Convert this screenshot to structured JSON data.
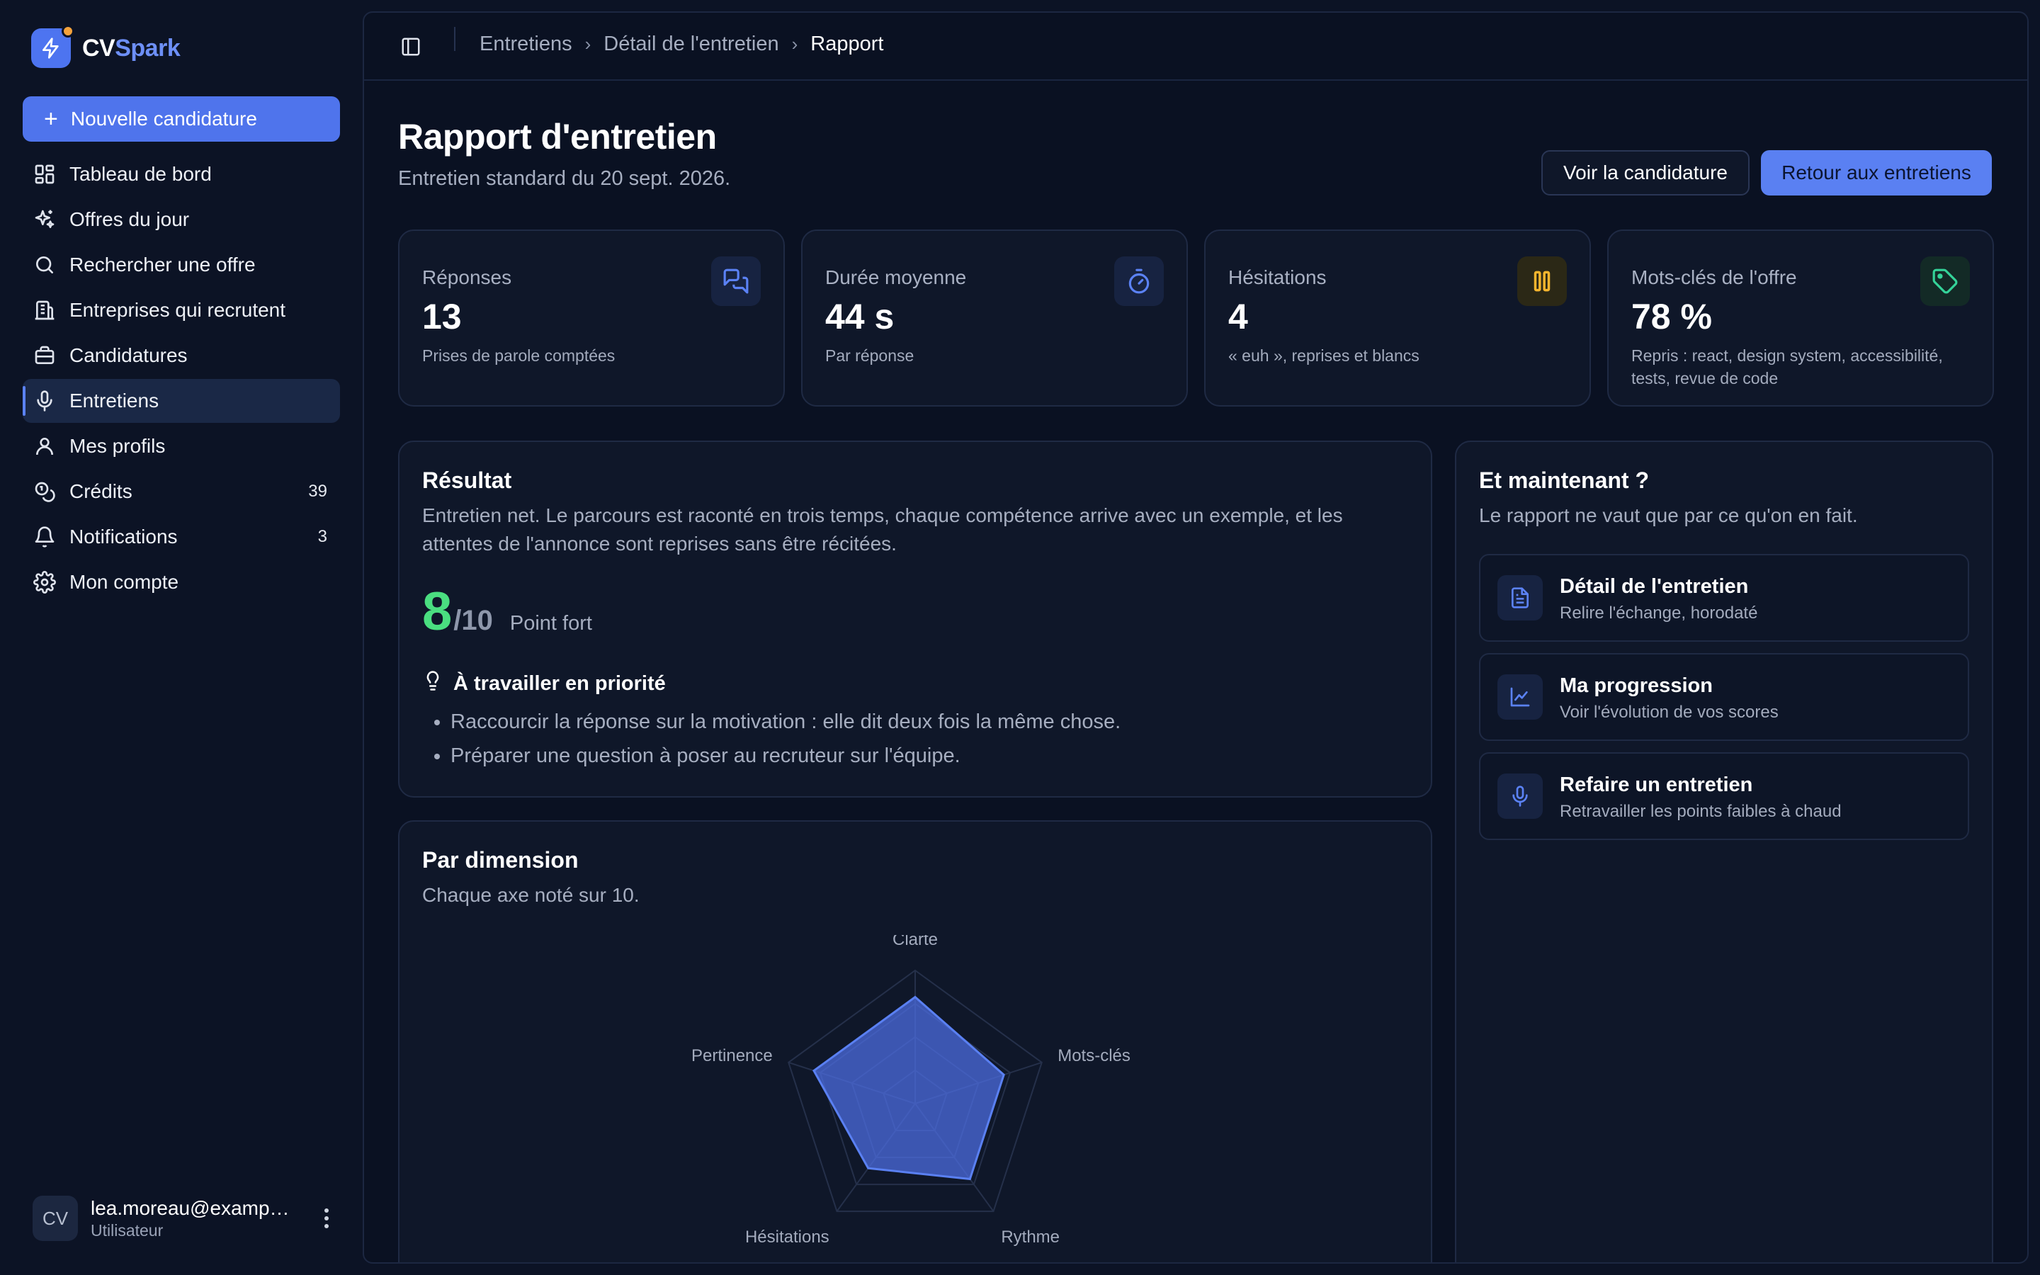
{
  "brand": {
    "name_part1": "CV",
    "name_part2": "Spark"
  },
  "sidebar": {
    "new_button": "Nouvelle candidature",
    "items": [
      {
        "label": "Tableau de bord",
        "icon": "dashboard-icon"
      },
      {
        "label": "Offres du jour",
        "icon": "sparkles-icon"
      },
      {
        "label": "Rechercher une offre",
        "icon": "search-icon"
      },
      {
        "label": "Entreprises qui recrutent",
        "icon": "building-icon"
      },
      {
        "label": "Candidatures",
        "icon": "briefcase-icon"
      },
      {
        "label": "Entretiens",
        "icon": "microphone-icon",
        "active": true
      },
      {
        "label": "Mes profils",
        "icon": "user-icon"
      },
      {
        "label": "Crédits",
        "icon": "coins-icon",
        "badge": "39"
      },
      {
        "label": "Notifications",
        "icon": "bell-icon",
        "badge": "3"
      },
      {
        "label": "Mon compte",
        "icon": "gear-icon"
      }
    ],
    "user": {
      "initials": "CV",
      "email": "lea.moreau@example.com",
      "role": "Utilisateur"
    }
  },
  "breadcrumb": [
    "Entretiens",
    "Détail de l'entretien",
    "Rapport"
  ],
  "page": {
    "title": "Rapport d'entretien",
    "subtitle": "Entretien standard du 20 sept. 2026.",
    "btn_secondary": "Voir la candidature",
    "btn_primary": "Retour aux entretiens"
  },
  "stats": [
    {
      "label": "Réponses",
      "value": "13",
      "sub": "Prises de parole comptées",
      "icon": "chat-icon",
      "color": "#5b82f5"
    },
    {
      "label": "Durée moyenne",
      "value": "44 s",
      "sub": "Par réponse",
      "icon": "timer-icon",
      "color": "#5b82f5"
    },
    {
      "label": "Hésitations",
      "value": "4",
      "sub": "« euh », reprises et blancs",
      "icon": "pause-icon",
      "color": "#f5b52e"
    },
    {
      "label": "Mots-clés de l'offre",
      "value": "78 %",
      "sub": "Repris : react, design system, accessibilité, tests, revue de code",
      "icon": "tag-icon",
      "color": "#34d399"
    }
  ],
  "result": {
    "title": "Résultat",
    "text": "Entretien net. Le parcours est raconté en trois temps, chaque compétence arrive avec un exemple, et les attentes de l'annonce sont reprises sans être récitées.",
    "score": "8",
    "score_max": "/10",
    "score_label": "Point fort",
    "priority_title": "À travailler en priorité",
    "priorities": [
      "Raccourcir la réponse sur la motivation : elle dit deux fois la même chose.",
      "Préparer une question à poser au recruteur sur l'équipe."
    ]
  },
  "dimensions": {
    "title": "Par dimension",
    "subtitle": "Chaque axe noté sur 10."
  },
  "chart_data": {
    "type": "radar",
    "categories": [
      "Clarté",
      "Mots-clés",
      "Rythme",
      "Hésitations",
      "Pertinence"
    ],
    "values": [
      8,
      7,
      7,
      6,
      8
    ],
    "range": [
      0,
      10
    ],
    "grid_levels": 4
  },
  "next": {
    "title": "Et maintenant ?",
    "subtitle": "Le rapport ne vaut que par ce qu'on en fait.",
    "actions": [
      {
        "title": "Détail de l'entretien",
        "sub": "Relire l'échange, horodaté",
        "icon": "document-icon"
      },
      {
        "title": "Ma progression",
        "sub": "Voir l'évolution de vos scores",
        "icon": "chart-line-icon"
      },
      {
        "title": "Refaire un entretien",
        "sub": "Retravailler les points faibles à chaud",
        "icon": "microphone-icon"
      }
    ]
  }
}
